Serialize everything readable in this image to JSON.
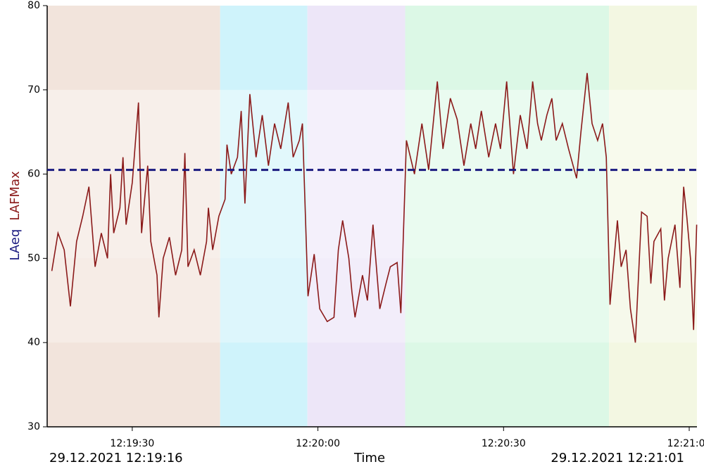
{
  "chart_data": {
    "type": "line",
    "x_label": "Time",
    "start_label": "29.12.2021 12:19:16",
    "end_label": "29.12.2021 12:21:01",
    "xlim": [
      16.25,
      121.25
    ],
    "xticks": [
      {
        "value": 30,
        "label": "12:19:30"
      },
      {
        "value": 60,
        "label": "12:20:00"
      },
      {
        "value": 90,
        "label": "12:20:30"
      },
      {
        "value": 120,
        "label": "12:21:00"
      }
    ],
    "ylim": [
      30,
      80
    ],
    "yticks": [
      30,
      40,
      50,
      60,
      70,
      80
    ],
    "bands": [
      {
        "from": 16.25,
        "to": 44.2,
        "color": "#f2e4dc"
      },
      {
        "from": 44.2,
        "to": 58.3,
        "color": "#cff3fb"
      },
      {
        "from": 58.3,
        "to": 74.1,
        "color": "#ede6f8"
      },
      {
        "from": 74.1,
        "to": 107.05,
        "color": "#dcf8e6"
      },
      {
        "from": 107.05,
        "to": 121.25,
        "color": "#f3f7e2"
      }
    ],
    "series": [
      {
        "name": "LAFMax",
        "color": "#8b1a1a",
        "style": "solid",
        "x": [
          17,
          18,
          19,
          20,
          21,
          22,
          23,
          24,
          25,
          26,
          26.5,
          27,
          28,
          28.5,
          29,
          30,
          31,
          31.5,
          32,
          32.5,
          33,
          34,
          34.3,
          35,
          36,
          37,
          38,
          38.5,
          39,
          40,
          41,
          42,
          42.3,
          43,
          43.5,
          44,
          45,
          45.3,
          46,
          47,
          47.6,
          48.2,
          49,
          50,
          51,
          52,
          53,
          54,
          55.2,
          56,
          57,
          57.5,
          58.4,
          59.4,
          60.3,
          61.5,
          62.6,
          63.3,
          64,
          65,
          65.5,
          66,
          67.2,
          68,
          68.9,
          70,
          71,
          71.7,
          72.8,
          73.4,
          74.3,
          75.6,
          76.8,
          77.9,
          79.3,
          80.2,
          81.4,
          82.5,
          83.6,
          84.7,
          85.5,
          86.4,
          87.6,
          88.7,
          89.5,
          90.5,
          91.6,
          92.7,
          93.8,
          94.7,
          95.5,
          96.1,
          97,
          97.8,
          98.5,
          99.5,
          100.5,
          101.8,
          102.5,
          103.5,
          104.3,
          105.2,
          106,
          106.6,
          107.2,
          108.4,
          109,
          109.8,
          110.5,
          111.3,
          112.3,
          113.2,
          113.8,
          114.3,
          115.4,
          116,
          116.6,
          117.7,
          118.5,
          119.1,
          119.6,
          120.2,
          120.7,
          121.2
        ],
        "values": [
          48.5,
          53,
          51,
          44.3,
          52,
          55,
          58.5,
          49,
          53,
          50,
          60,
          53,
          56,
          62,
          54,
          59,
          68.5,
          53,
          57,
          61,
          52,
          48,
          43,
          50,
          52.5,
          48,
          51,
          62.5,
          49,
          51,
          48,
          52,
          56,
          51,
          53,
          55,
          57,
          63.5,
          60,
          62,
          67.5,
          56.5,
          69.5,
          62,
          67,
          61,
          66,
          63,
          68.5,
          62,
          64,
          66,
          45.5,
          50.5,
          44,
          42.5,
          43,
          51,
          54.5,
          50,
          46,
          43,
          48,
          45,
          54,
          44,
          47,
          49,
          49.5,
          43.5,
          64,
          60,
          66,
          60.5,
          71,
          63,
          69,
          66.5,
          61,
          66,
          63,
          67.5,
          62,
          66,
          63,
          71,
          60,
          67,
          63,
          71,
          66,
          64,
          67,
          69,
          64,
          66,
          63,
          59.5,
          65,
          72,
          66,
          64,
          66,
          62,
          44.5,
          54.5,
          49,
          51,
          44,
          40,
          55.5,
          55,
          47,
          52,
          53.5,
          45,
          50,
          54,
          46.5,
          58.5,
          55,
          50,
          41.5,
          54
        ]
      },
      {
        "name": "LAeq",
        "color": "#1a1a80",
        "style": "dashed",
        "x": [
          16.25,
          121.25
        ],
        "values": [
          60.5,
          60.5
        ]
      }
    ]
  }
}
